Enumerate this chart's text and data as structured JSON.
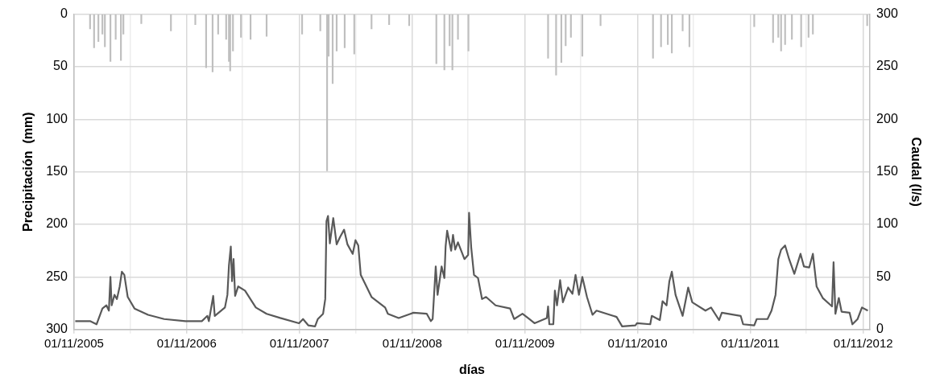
{
  "chart_data": {
    "type": "line",
    "xlabel": "días",
    "ylabel": "Precipitación  (mm)",
    "y2label": "Caudal (l/s)",
    "xlim": [
      "2005-11-01",
      "2012-11-23"
    ],
    "xticks": [
      {
        "value": "2005-11-01",
        "label": "01/11/2005"
      },
      {
        "value": "2006-05-01",
        "label": null
      },
      {
        "value": "2006-11-01",
        "label": "01/11/2006"
      },
      {
        "value": "2007-05-01",
        "label": null
      },
      {
        "value": "2007-11-01",
        "label": "01/11/2007"
      },
      {
        "value": "2008-05-01",
        "label": null
      },
      {
        "value": "2008-11-01",
        "label": "01/11/2008"
      },
      {
        "value": "2009-05-01",
        "label": null
      },
      {
        "value": "2009-11-01",
        "label": "01/11/2009"
      },
      {
        "value": "2010-05-01",
        "label": null
      },
      {
        "value": "2010-11-01",
        "label": "01/11/2010"
      },
      {
        "value": "2011-05-01",
        "label": null
      },
      {
        "value": "2011-11-01",
        "label": "01/11/2011"
      },
      {
        "value": "2012-05-01",
        "label": null
      },
      {
        "value": "2012-11-01",
        "label": "01/11/2012"
      }
    ],
    "ylim": [
      300,
      0
    ],
    "yticks": [
      0,
      50,
      100,
      150,
      200,
      250,
      300
    ],
    "y2lim": [
      0,
      300
    ],
    "y2ticks": [
      0,
      50,
      100,
      150,
      200,
      250,
      300
    ],
    "grid": true,
    "legend": false,
    "series": [
      {
        "type": "bar",
        "axis": "y",
        "color": "#bfbfbf",
        "x": [
          "2005-12-23",
          "2006-01-05",
          "2006-01-19",
          "2006-02-01",
          "2006-02-09",
          "2006-02-27",
          "2006-03-16",
          "2006-04-02",
          "2006-04-10",
          "2006-06-07",
          "2006-09-11",
          "2006-11-29",
          "2007-01-03",
          "2007-01-24",
          "2007-02-11",
          "2007-03-09",
          "2007-03-18",
          "2007-03-22",
          "2007-03-31",
          "2007-04-26",
          "2007-05-27",
          "2007-07-18",
          "2007-11-10",
          "2008-01-08",
          "2008-01-30",
          "2008-02-04",
          "2008-02-17",
          "2008-03-01",
          "2008-03-27",
          "2008-04-27",
          "2008-06-22",
          "2008-08-18",
          "2008-10-22",
          "2009-01-18",
          "2009-02-13",
          "2009-03-02",
          "2009-03-11",
          "2009-03-29",
          "2009-05-02",
          "2010-01-15",
          "2010-02-10",
          "2010-02-27",
          "2010-03-13",
          "2010-03-30",
          "2010-05-06",
          "2010-07-04",
          "2010-12-21",
          "2011-01-16",
          "2011-02-07",
          "2011-02-20",
          "2011-03-27",
          "2011-04-18",
          "2011-11-14",
          "2012-01-14",
          "2012-01-31",
          "2012-02-09",
          "2012-02-22",
          "2012-03-15",
          "2012-04-14",
          "2012-05-08",
          "2012-05-22",
          "2012-11-14"
        ],
        "values": [
          14,
          32,
          26,
          19,
          31,
          45,
          24,
          44,
          19,
          9,
          16,
          10,
          51,
          55,
          19,
          24,
          45,
          54,
          35,
          22,
          24,
          21,
          19,
          16,
          149,
          40,
          66,
          35,
          32,
          38,
          14,
          10,
          11,
          47,
          53,
          30,
          53,
          24,
          35,
          42,
          58,
          46,
          30,
          22,
          40,
          11,
          42,
          31,
          29,
          37,
          16,
          31,
          12,
          27,
          22,
          35,
          29,
          24,
          31,
          22,
          19,
          11
        ]
      },
      {
        "axis": "y2",
        "color": "#595959",
        "x": [
          "2005-11-05",
          "2005-12-23",
          "2006-01-13",
          "2006-02-01",
          "2006-02-14",
          "2006-02-22",
          "2006-02-27",
          "2006-03-03",
          "2006-03-12",
          "2006-03-20",
          "2006-03-29",
          "2006-04-05",
          "2006-04-13",
          "2006-04-24",
          "2006-05-16",
          "2006-06-29",
          "2006-08-20",
          "2006-10-28",
          "2006-12-20",
          "2007-01-07",
          "2007-01-12",
          "2007-01-26",
          "2007-01-31",
          "2007-03-05",
          "2007-03-13",
          "2007-03-18",
          "2007-03-24",
          "2007-03-28",
          "2007-04-02",
          "2007-04-07",
          "2007-04-17",
          "2007-05-09",
          "2007-06-13",
          "2007-07-18",
          "2007-08-31",
          "2007-10-31",
          "2007-11-13",
          "2007-11-30",
          "2007-12-22",
          "2007-12-31",
          "2008-01-17",
          "2008-01-24",
          "2008-01-28",
          "2008-02-02",
          "2008-02-08",
          "2008-02-19",
          "2008-03-01",
          "2008-03-12",
          "2008-03-25",
          "2008-04-05",
          "2008-04-22",
          "2008-05-01",
          "2008-05-10",
          "2008-05-18",
          "2008-06-22",
          "2008-08-05",
          "2008-08-14",
          "2008-09-18",
          "2008-11-05",
          "2008-12-18",
          "2008-12-31",
          "2009-01-06",
          "2009-01-16",
          "2009-01-22",
          "2009-02-04",
          "2009-02-13",
          "2009-02-17",
          "2009-02-22",
          "2009-03-07",
          "2009-03-13",
          "2009-03-20",
          "2009-03-29",
          "2009-04-19",
          "2009-05-01",
          "2009-05-04",
          "2009-05-11",
          "2009-05-20",
          "2009-06-02",
          "2009-06-15",
          "2009-06-28",
          "2009-07-29",
          "2009-09-14",
          "2009-09-27",
          "2009-10-24",
          "2009-11-15",
          "2009-12-02",
          "2010-01-11",
          "2010-01-15",
          "2010-01-19",
          "2010-02-01",
          "2010-02-06",
          "2010-02-13",
          "2010-02-23",
          "2010-03-04",
          "2010-03-21",
          "2010-04-04",
          "2010-04-14",
          "2010-04-25",
          "2010-05-06",
          "2010-05-21",
          "2010-06-08",
          "2010-06-21",
          "2010-08-25",
          "2010-09-12",
          "2010-10-25",
          "2010-10-30",
          "2010-12-12",
          "2010-12-17",
          "2011-01-12",
          "2011-01-21",
          "2011-02-03",
          "2011-02-12",
          "2011-02-20",
          "2011-03-04",
          "2011-03-27",
          "2011-04-14",
          "2011-04-27",
          "2011-06-09",
          "2011-06-27",
          "2011-07-23",
          "2011-08-01",
          "2011-10-01",
          "2011-10-09",
          "2011-11-14",
          "2011-11-22",
          "2011-12-27",
          "2012-01-09",
          "2012-01-22",
          "2012-01-31",
          "2012-02-09",
          "2012-02-22",
          "2012-03-06",
          "2012-03-23",
          "2012-04-12",
          "2012-04-23",
          "2012-05-10",
          "2012-05-22",
          "2012-06-03",
          "2012-06-23",
          "2012-07-23",
          "2012-07-28",
          "2012-08-03",
          "2012-08-14",
          "2012-08-23",
          "2012-09-18",
          "2012-09-27",
          "2012-10-14",
          "2012-10-28",
          "2012-11-16"
        ],
        "values": [
          8,
          8,
          5,
          20,
          23,
          18,
          50,
          23,
          33,
          29,
          41,
          55,
          52,
          31,
          20,
          14,
          10,
          8,
          8,
          13,
          8,
          32,
          13,
          21,
          33,
          61,
          79,
          46,
          67,
          32,
          41,
          37,
          21,
          15,
          11,
          6,
          10,
          4,
          3,
          10,
          15,
          29,
          103,
          108,
          82,
          106,
          81,
          88,
          95,
          81,
          72,
          85,
          80,
          52,
          31,
          21,
          15,
          11,
          16,
          15,
          8,
          10,
          60,
          33,
          60,
          49,
          79,
          94,
          75,
          90,
          76,
          83,
          67,
          71,
          111,
          78,
          52,
          49,
          29,
          31,
          23,
          20,
          10,
          15,
          10,
          6,
          11,
          22,
          5,
          5,
          37,
          23,
          47,
          26,
          40,
          34,
          52,
          33,
          50,
          31,
          14,
          18,
          12,
          3,
          4,
          6,
          5,
          13,
          9,
          27,
          23,
          46,
          55,
          33,
          13,
          40,
          26,
          18,
          21,
          9,
          16,
          13,
          5,
          4,
          10,
          10,
          18,
          33,
          67,
          76,
          80,
          67,
          53,
          72,
          60,
          59,
          72,
          41,
          30,
          22,
          64,
          15,
          30,
          17,
          16,
          5,
          10,
          21,
          18
        ]
      }
    ]
  }
}
